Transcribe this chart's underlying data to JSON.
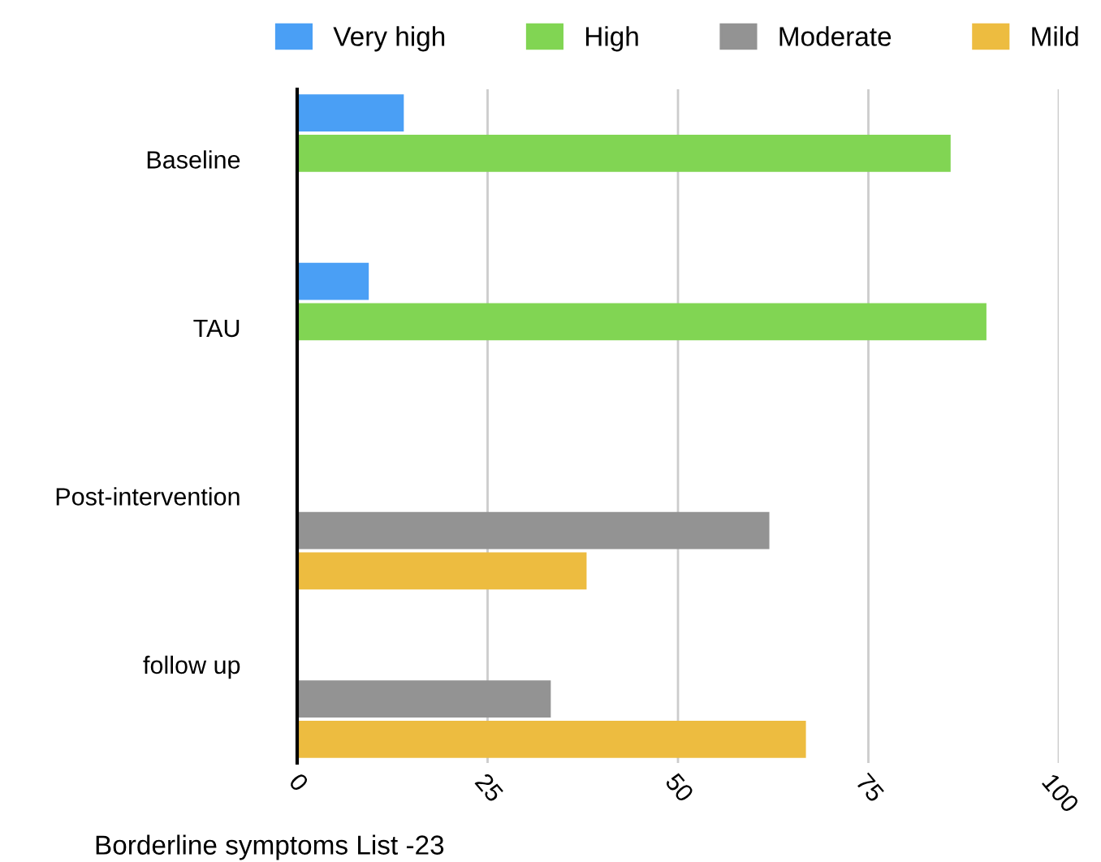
{
  "chart_data": {
    "type": "bar",
    "orientation": "horizontal",
    "title": "Borderline symptoms List -23",
    "categories": [
      "Baseline",
      "TAU",
      "Post-intervention",
      "follow up"
    ],
    "series": [
      {
        "name": "Very high",
        "color": "#4a9ff5",
        "values": [
          14,
          9.4,
          null,
          null
        ]
      },
      {
        "name": "High",
        "color": "#81d553",
        "values": [
          85.8,
          90.5,
          null,
          null
        ]
      },
      {
        "name": "Moderate",
        "color": "#939393",
        "values": [
          null,
          null,
          62,
          33.3
        ]
      },
      {
        "name": "Mild",
        "color": "#edbc40",
        "values": [
          null,
          null,
          38,
          66.8
        ]
      }
    ],
    "xlim": [
      0,
      100
    ],
    "xticks": [
      0,
      25,
      50,
      75,
      100
    ],
    "grid": "x",
    "legend": "top"
  }
}
